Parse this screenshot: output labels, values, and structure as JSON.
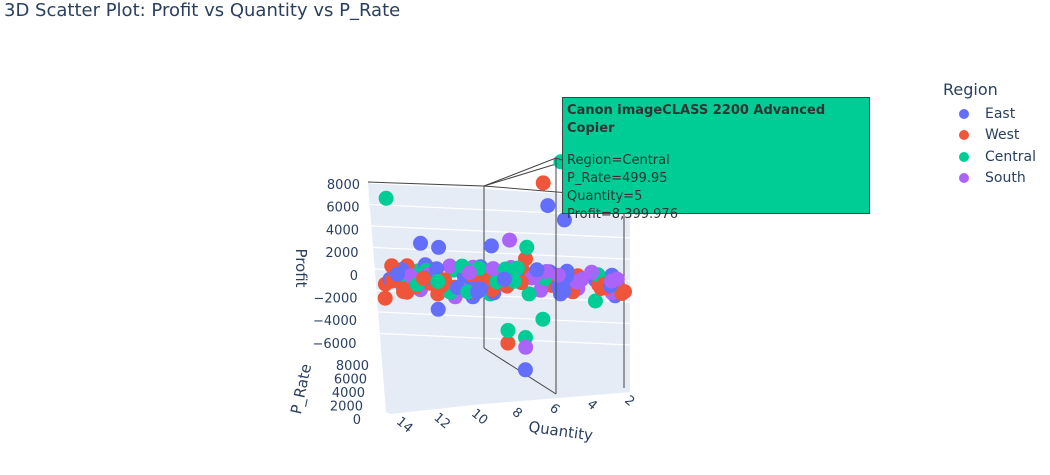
{
  "title": "3D Scatter Plot: Profit vs Quantity vs P_Rate",
  "legend": {
    "title": "Region",
    "items": [
      {
        "label": "East",
        "color": "#636efa"
      },
      {
        "label": "West",
        "color": "#ef553b"
      },
      {
        "label": "Central",
        "color": "#00cc96"
      },
      {
        "label": "South",
        "color": "#ab63fa"
      }
    ]
  },
  "hover": {
    "header": "Canon imageCLASS 2200 Advanced Copier",
    "lines": [
      "Region=Central",
      "P_Rate=499.95",
      "Quantity=5",
      "Profit=8,399.976"
    ],
    "color": "#00cc96"
  },
  "chart_data": {
    "type": "scatter",
    "title": "3D Scatter Plot: Profit vs Quantity vs P_Rate",
    "axes": {
      "x": {
        "label": "Quantity",
        "ticks": [
          "14",
          "12",
          "10",
          "8",
          "6",
          "4",
          "2"
        ],
        "range": [
          1,
          14
        ]
      },
      "y": {
        "label": "P_Rate",
        "ticks": [
          "8000",
          "6000",
          "4000",
          "2000",
          "0"
        ],
        "range": [
          0,
          8000
        ]
      },
      "z": {
        "label": "Profit",
        "ticks": [
          "8000",
          "6000",
          "4000",
          "2000",
          "0",
          "−2000",
          "−4000",
          "−6000"
        ],
        "range": [
          -7000,
          8400
        ]
      }
    },
    "series": [
      {
        "name": "East",
        "color": "#636efa",
        "points": [
          {
            "q": 6,
            "p": 3000,
            "profit": 5200
          },
          {
            "q": 5,
            "p": 2500,
            "profit": 4200
          },
          {
            "q": 13,
            "p": 300,
            "profit": 2600
          },
          {
            "q": 12,
            "p": 600,
            "profit": 2300
          },
          {
            "q": 9,
            "p": 800,
            "profit": 2400
          },
          {
            "q": 7,
            "p": 200,
            "profit": -6400
          },
          {
            "q": 12,
            "p": 400,
            "profit": -2100
          },
          {
            "q": 14,
            "p": 100,
            "profit": -400
          },
          {
            "q": 10,
            "p": 200,
            "profit": -1200
          },
          {
            "q": 5,
            "p": 300,
            "profit": -1000
          },
          {
            "q": 3,
            "p": 150,
            "profit": 0
          },
          {
            "q": 8,
            "p": 250,
            "profit": 0
          }
        ]
      },
      {
        "name": "West",
        "color": "#ef553b",
        "points": [
          {
            "q": 6,
            "p": 400,
            "profit": 6900
          },
          {
            "q": 15,
            "p": 200,
            "profit": -300
          },
          {
            "q": 15,
            "p": 100,
            "profit": -1300
          },
          {
            "q": 12,
            "p": 150,
            "profit": -1000
          },
          {
            "q": 7,
            "p": 300,
            "profit": 1500
          },
          {
            "q": 8,
            "p": 200,
            "profit": -4500
          },
          {
            "q": 4,
            "p": 150,
            "profit": 300
          },
          {
            "q": 10,
            "p": 100,
            "profit": -800
          }
        ]
      },
      {
        "name": "Central",
        "color": "#00cc96",
        "points": [
          {
            "q": 5,
            "p": 499.95,
            "profit": 8399.976
          },
          {
            "q": 15,
            "p": 600,
            "profit": 5800
          },
          {
            "q": 7,
            "p": 1000,
            "profit": 2300
          },
          {
            "q": 8,
            "p": 300,
            "profit": -3600
          },
          {
            "q": 7,
            "p": 300,
            "profit": -4100
          },
          {
            "q": 6,
            "p": 200,
            "profit": -2800
          },
          {
            "q": 3,
            "p": 200,
            "profit": -1500
          },
          {
            "q": 2,
            "p": 150,
            "profit": -800
          },
          {
            "q": 9,
            "p": 150,
            "profit": -1000
          },
          {
            "q": 5,
            "p": 150,
            "profit": -600
          }
        ]
      },
      {
        "name": "South",
        "color": "#ab63fa",
        "points": [
          {
            "q": 8,
            "p": 1200,
            "profit": 2800
          },
          {
            "q": 7,
            "p": 400,
            "profit": -4800
          },
          {
            "q": 13,
            "p": 200,
            "profit": -700
          },
          {
            "q": 10,
            "p": 200,
            "profit": 900
          },
          {
            "q": 6,
            "p": 200,
            "profit": 300
          },
          {
            "q": 4,
            "p": 150,
            "profit": -600
          },
          {
            "q": 11,
            "p": 100,
            "profit": -1200
          },
          {
            "q": 8,
            "p": 100,
            "profit": -200
          }
        ]
      }
    ]
  }
}
